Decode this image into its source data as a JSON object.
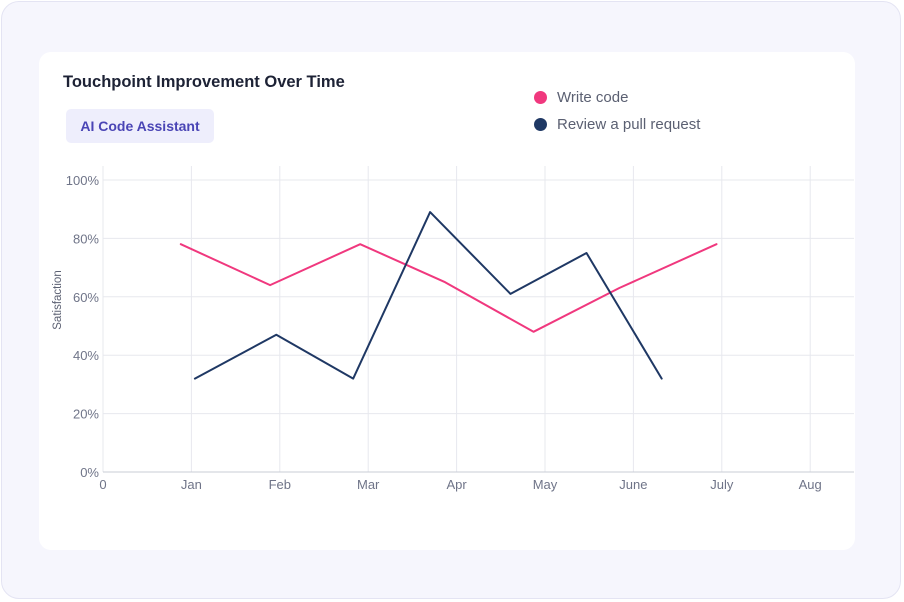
{
  "chart_data": {
    "type": "line",
    "title": "Touchpoint Improvement Over Time",
    "xlabel": "",
    "ylabel": "Satisfaction",
    "x_ticks": [
      "0",
      "Jan",
      "Feb",
      "Mar",
      "Apr",
      "May",
      "June",
      "July",
      "Aug"
    ],
    "y_ticks": [
      "0%",
      "20%",
      "40%",
      "60%",
      "80%",
      "100%"
    ],
    "xlim": [
      0,
      8
    ],
    "ylim": [
      0,
      100
    ],
    "grid": true,
    "legend_position": "top-right",
    "series": [
      {
        "name": "Write code",
        "color": "#f0387e",
        "x": [
          0.88,
          1.89,
          2.91,
          3.87,
          4.87,
          5.84,
          6.94
        ],
        "y": [
          78,
          64,
          78,
          65,
          48,
          63,
          78
        ]
      },
      {
        "name": "Review a pull request",
        "color": "#1f3864",
        "x": [
          1.04,
          1.96,
          2.83,
          3.7,
          4.61,
          5.47,
          6.32
        ],
        "y": [
          32,
          47,
          32,
          89,
          61,
          75,
          32
        ]
      }
    ]
  },
  "filter": {
    "label": "AI Code Assistant"
  }
}
